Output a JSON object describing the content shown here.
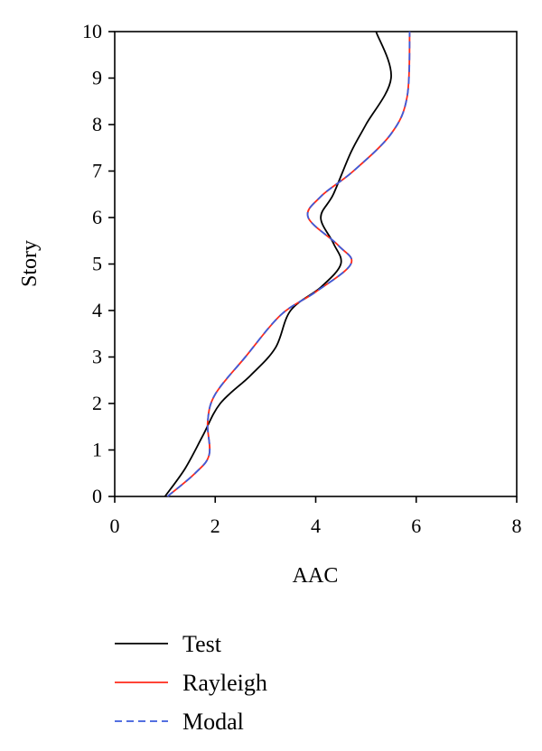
{
  "chart_data": {
    "type": "line",
    "xlabel": "AAC",
    "ylabel": "Story",
    "xlim": [
      0,
      8
    ],
    "ylim": [
      0,
      10
    ],
    "xticks": [
      "0",
      "2",
      "4",
      "6",
      "8"
    ],
    "yticks": [
      "0",
      "1",
      "2",
      "3",
      "4",
      "5",
      "6",
      "7",
      "8",
      "9",
      "10"
    ],
    "grid": false,
    "legend_position": "bottom-left",
    "series": [
      {
        "name": "Test",
        "color": "#000000",
        "dash": "solid",
        "points": [
          [
            1.0,
            0
          ],
          [
            1.4,
            0.6
          ],
          [
            1.75,
            1.3
          ],
          [
            2.1,
            2.0
          ],
          [
            2.7,
            2.6
          ],
          [
            3.2,
            3.2
          ],
          [
            3.5,
            4.0
          ],
          [
            4.1,
            4.5
          ],
          [
            4.5,
            5.0
          ],
          [
            4.35,
            5.45
          ],
          [
            4.1,
            6.0
          ],
          [
            4.35,
            6.5
          ],
          [
            4.7,
            7.4
          ],
          [
            5.0,
            8.0
          ],
          [
            5.5,
            9.0
          ],
          [
            5.2,
            10.0
          ]
        ]
      },
      {
        "name": "Rayleigh",
        "color": "#ff2a1a",
        "dash": "solid",
        "points": [
          [
            1.05,
            0
          ],
          [
            1.6,
            0.5
          ],
          [
            1.88,
            0.9
          ],
          [
            1.85,
            1.6
          ],
          [
            2.0,
            2.2
          ],
          [
            2.6,
            3.0
          ],
          [
            3.3,
            3.9
          ],
          [
            4.0,
            4.4
          ],
          [
            4.7,
            5.0
          ],
          [
            4.45,
            5.4
          ],
          [
            3.85,
            6.0
          ],
          [
            4.1,
            6.45
          ],
          [
            4.75,
            7.0
          ],
          [
            5.5,
            7.8
          ],
          [
            5.82,
            8.6
          ],
          [
            5.87,
            10.0
          ]
        ]
      },
      {
        "name": "Modal",
        "color": "#3b5bdb",
        "dash": "dashed",
        "points": [
          [
            1.05,
            0
          ],
          [
            1.6,
            0.5
          ],
          [
            1.88,
            0.9
          ],
          [
            1.85,
            1.6
          ],
          [
            2.0,
            2.2
          ],
          [
            2.6,
            3.0
          ],
          [
            3.3,
            3.9
          ],
          [
            4.0,
            4.4
          ],
          [
            4.7,
            5.0
          ],
          [
            4.45,
            5.4
          ],
          [
            3.85,
            6.0
          ],
          [
            4.1,
            6.45
          ],
          [
            4.75,
            7.0
          ],
          [
            5.5,
            7.8
          ],
          [
            5.82,
            8.6
          ],
          [
            5.87,
            10.0
          ]
        ]
      }
    ]
  }
}
